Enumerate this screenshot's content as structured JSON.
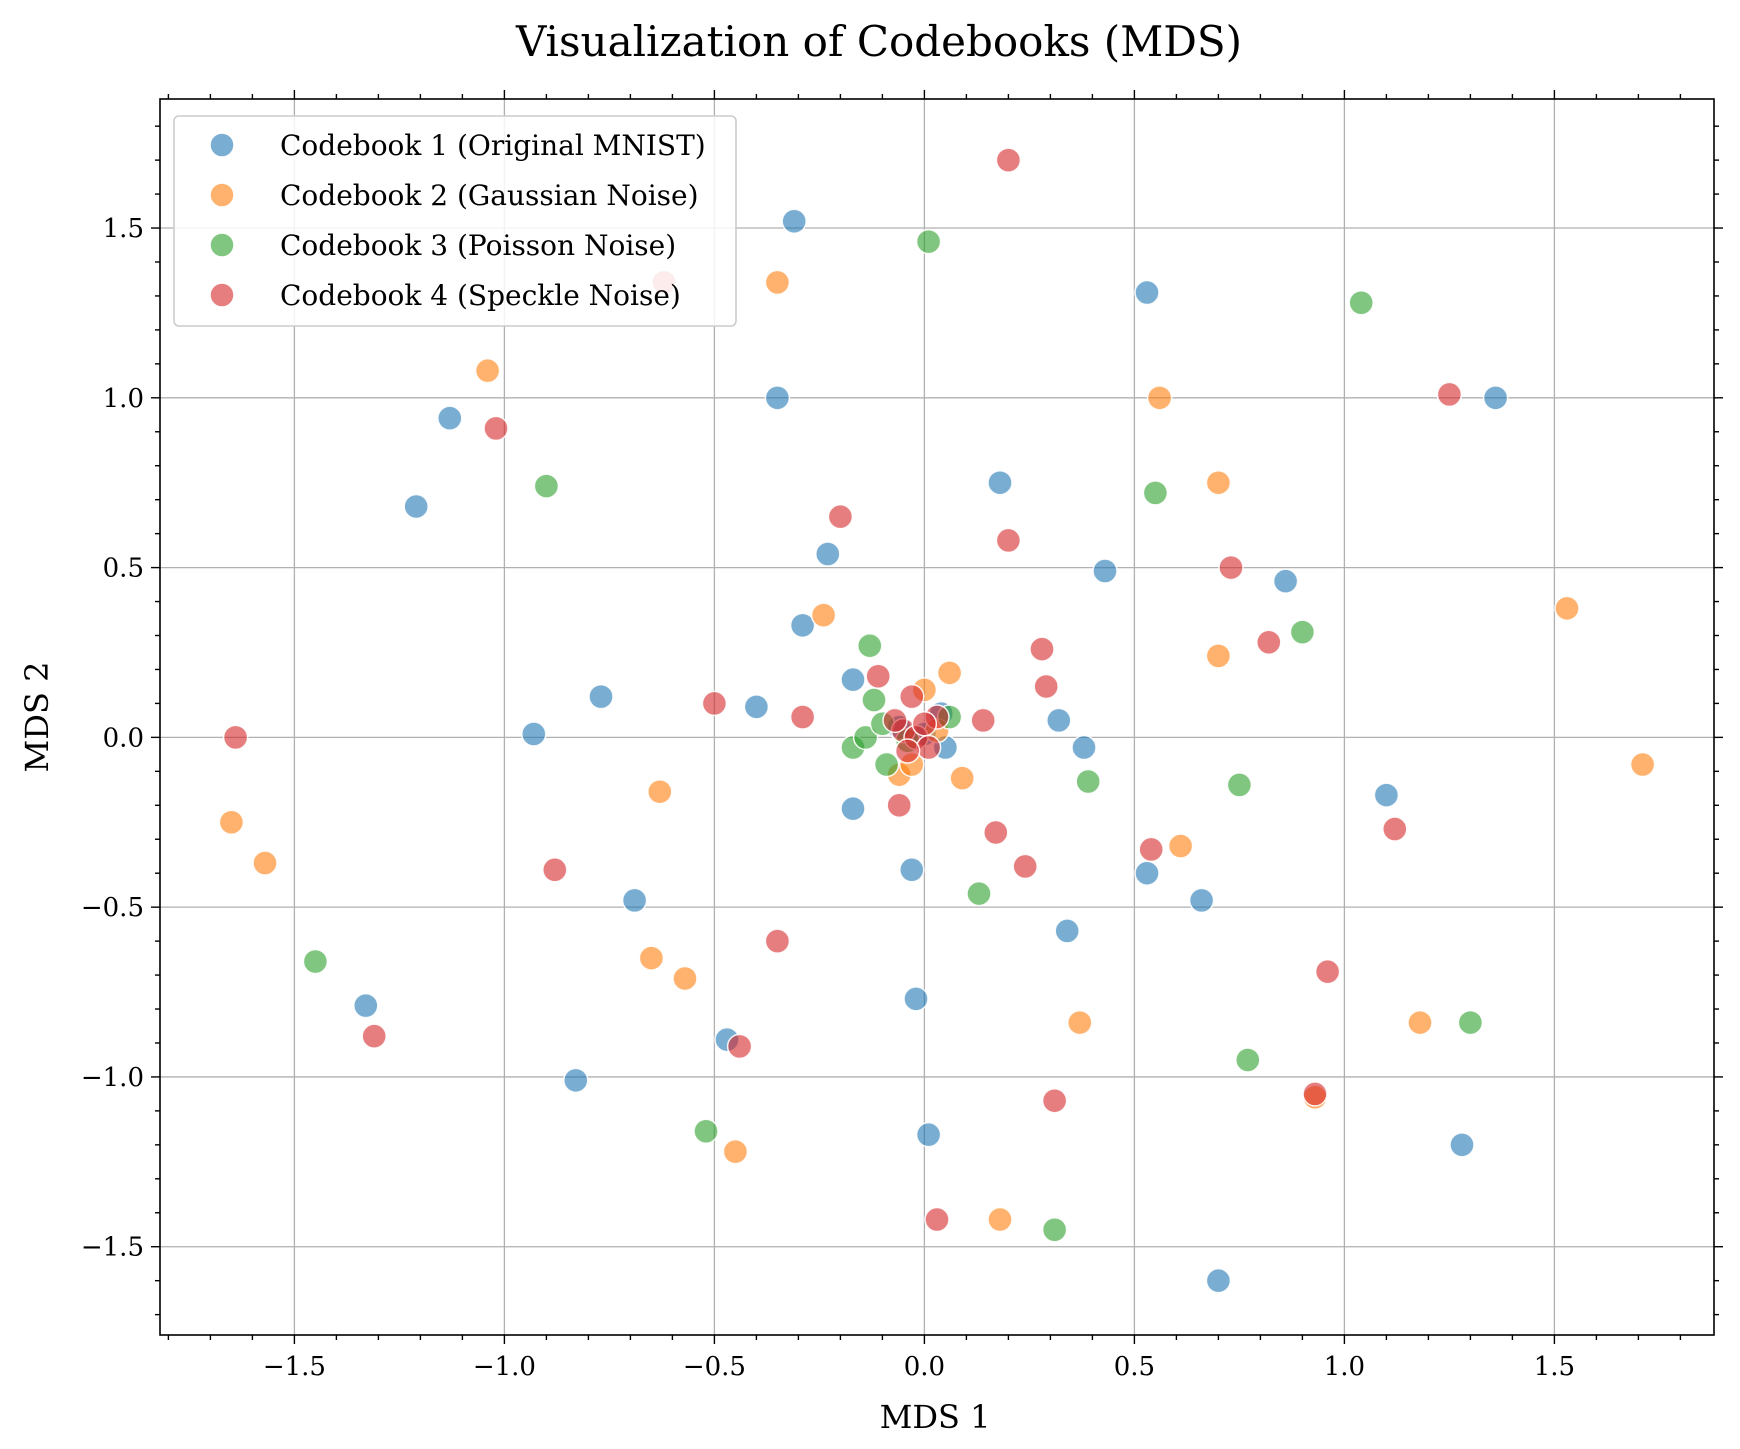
{
  "chart_data": {
    "type": "scatter",
    "title": "Visualization of Codebooks (MDS)",
    "xlabel": "MDS 1",
    "ylabel": "MDS 2",
    "xlim": [
      -1.82,
      1.88
    ],
    "ylim": [
      -1.76,
      1.88
    ],
    "xticks": [
      -1.5,
      -1.0,
      -0.5,
      0.0,
      0.5,
      1.0,
      1.5
    ],
    "yticks": [
      -1.5,
      -1.0,
      -0.5,
      0.0,
      0.5,
      1.0,
      1.5
    ],
    "xtick_labels": [
      "−1.5",
      "−1.0",
      "−0.5",
      "0.0",
      "0.5",
      "1.0",
      "1.5"
    ],
    "ytick_labels": [
      "−1.5",
      "−1.0",
      "−0.5",
      "0.0",
      "0.5",
      "1.0",
      "1.5"
    ],
    "grid": true,
    "legend_position": "top-left",
    "series": [
      {
        "name": "Codebook 1 (Original MNIST)",
        "color": "#1f77b4",
        "points": [
          [
            -0.31,
            1.52
          ],
          [
            0.53,
            1.31
          ],
          [
            -0.35,
            1.0
          ],
          [
            1.36,
            1.0
          ],
          [
            -1.13,
            0.94
          ],
          [
            -1.21,
            0.68
          ],
          [
            0.18,
            0.75
          ],
          [
            -0.23,
            0.54
          ],
          [
            0.43,
            0.49
          ],
          [
            0.86,
            0.46
          ],
          [
            -0.29,
            0.33
          ],
          [
            -0.77,
            0.12
          ],
          [
            -0.4,
            0.09
          ],
          [
            -0.17,
            0.17
          ],
          [
            -0.93,
            0.01
          ],
          [
            0.32,
            0.05
          ],
          [
            0.38,
            -0.03
          ],
          [
            0.05,
            -0.03
          ],
          [
            0.04,
            0.07
          ],
          [
            1.1,
            -0.17
          ],
          [
            -0.17,
            -0.21
          ],
          [
            -0.03,
            -0.39
          ],
          [
            0.53,
            -0.4
          ],
          [
            -0.69,
            -0.48
          ],
          [
            0.66,
            -0.48
          ],
          [
            0.34,
            -0.57
          ],
          [
            -0.02,
            -0.77
          ],
          [
            -1.33,
            -0.79
          ],
          [
            -0.47,
            -0.89
          ],
          [
            -0.83,
            -1.01
          ],
          [
            0.01,
            -1.17
          ],
          [
            1.28,
            -1.2
          ],
          [
            0.7,
            -1.6
          ],
          [
            0.0,
            0.01
          ],
          [
            -0.06,
            0.03
          ]
        ]
      },
      {
        "name": "Codebook 2 (Gaussian Noise)",
        "color": "#ff7f0e",
        "points": [
          [
            -0.35,
            1.34
          ],
          [
            -1.04,
            1.08
          ],
          [
            0.56,
            1.0
          ],
          [
            0.7,
            0.75
          ],
          [
            -0.24,
            0.36
          ],
          [
            0.7,
            0.24
          ],
          [
            1.53,
            0.38
          ],
          [
            0.06,
            0.19
          ],
          [
            0.0,
            0.14
          ],
          [
            1.71,
            -0.08
          ],
          [
            -0.63,
            -0.16
          ],
          [
            0.09,
            -0.12
          ],
          [
            -0.06,
            -0.11
          ],
          [
            -1.65,
            -0.25
          ],
          [
            -1.57,
            -0.37
          ],
          [
            0.61,
            -0.32
          ],
          [
            -0.65,
            -0.65
          ],
          [
            -0.57,
            -0.71
          ],
          [
            0.37,
            -0.84
          ],
          [
            1.18,
            -0.84
          ],
          [
            0.93,
            -1.06
          ],
          [
            -0.45,
            -1.22
          ],
          [
            0.18,
            -1.42
          ],
          [
            -0.03,
            -0.08
          ],
          [
            0.03,
            0.02
          ]
        ]
      },
      {
        "name": "Codebook 3 (Poisson Noise)",
        "color": "#2ca02c",
        "points": [
          [
            0.01,
            1.46
          ],
          [
            1.04,
            1.28
          ],
          [
            -0.9,
            0.74
          ],
          [
            0.55,
            0.72
          ],
          [
            0.9,
            0.31
          ],
          [
            -0.13,
            0.27
          ],
          [
            -0.12,
            0.11
          ],
          [
            0.06,
            0.06
          ],
          [
            -0.17,
            -0.03
          ],
          [
            -0.14,
            0.0
          ],
          [
            -0.09,
            -0.08
          ],
          [
            0.39,
            -0.13
          ],
          [
            0.75,
            -0.14
          ],
          [
            0.13,
            -0.46
          ],
          [
            -1.45,
            -0.66
          ],
          [
            0.77,
            -0.95
          ],
          [
            -0.52,
            -1.16
          ],
          [
            1.3,
            -0.84
          ],
          [
            0.31,
            -1.45
          ],
          [
            -0.1,
            0.04
          ],
          [
            -0.04,
            -0.01
          ]
        ]
      },
      {
        "name": "Codebook 4 (Speckle Noise)",
        "color": "#d62728",
        "points": [
          [
            0.2,
            1.7
          ],
          [
            -0.62,
            1.34
          ],
          [
            1.25,
            1.01
          ],
          [
            -1.02,
            0.91
          ],
          [
            -0.2,
            0.65
          ],
          [
            0.2,
            0.58
          ],
          [
            0.73,
            0.5
          ],
          [
            0.28,
            0.26
          ],
          [
            0.82,
            0.28
          ],
          [
            0.29,
            0.15
          ],
          [
            -0.11,
            0.18
          ],
          [
            -0.5,
            0.1
          ],
          [
            -0.29,
            0.06
          ],
          [
            0.14,
            0.05
          ],
          [
            -1.64,
            0.0
          ],
          [
            -0.06,
            -0.2
          ],
          [
            0.17,
            -0.28
          ],
          [
            0.54,
            -0.33
          ],
          [
            1.12,
            -0.27
          ],
          [
            0.24,
            -0.38
          ],
          [
            -0.88,
            -0.39
          ],
          [
            -0.35,
            -0.6
          ],
          [
            0.96,
            -0.69
          ],
          [
            -1.31,
            -0.88
          ],
          [
            -0.44,
            -0.91
          ],
          [
            0.31,
            -1.07
          ],
          [
            0.93,
            -1.05
          ],
          [
            0.03,
            -1.42
          ],
          [
            -0.03,
            0.12
          ],
          [
            0.03,
            0.06
          ],
          [
            -0.05,
            0.02
          ],
          [
            -0.02,
            0.0
          ],
          [
            0.0,
            0.04
          ],
          [
            -0.07,
            0.05
          ],
          [
            0.01,
            -0.03
          ],
          [
            -0.04,
            -0.04
          ]
        ]
      }
    ]
  }
}
